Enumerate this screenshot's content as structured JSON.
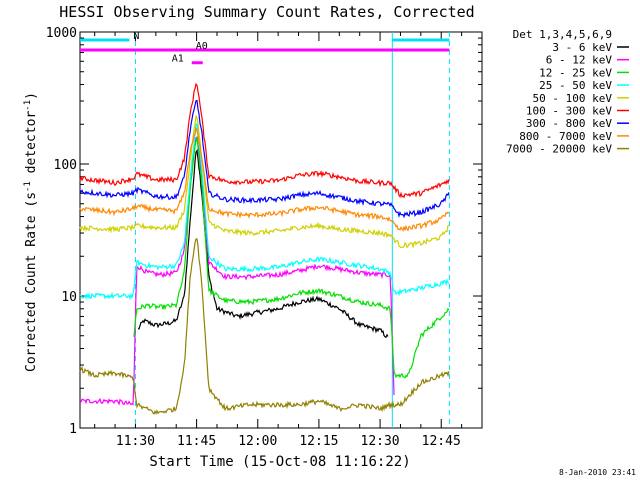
{
  "chart_data": {
    "type": "line",
    "title": "HESSI Observing Summary Count Rates, Corrected",
    "xlabel": "Start Time (15-Oct-08 11:16:22)",
    "ylabel_main": "Corrected Count Rate (s",
    "ylabel_sup1": "-1",
    "ylabel_mid": " detector",
    "ylabel_sup2": "-1",
    "ylabel_end": ")",
    "yscale": "log",
    "ylim": [
      1,
      1000
    ],
    "xlim_minutes": [
      676.4,
      775.0
    ],
    "x_ticks": [
      {
        "label": "11:30",
        "minute": 690
      },
      {
        "label": "11:45",
        "minute": 705
      },
      {
        "label": "12:00",
        "minute": 720
      },
      {
        "label": "12:15",
        "minute": 735
      },
      {
        "label": "12:30",
        "minute": 750
      },
      {
        "label": "12:45",
        "minute": 765
      }
    ],
    "y_ticks": [
      {
        "label": "1",
        "value": 1
      },
      {
        "label": "10",
        "value": 10
      },
      {
        "label": "100",
        "value": 100
      },
      {
        "label": "1000",
        "value": 1000
      }
    ],
    "legend_title": "Det 1,3,4,5,6,9",
    "series": [
      {
        "name": "3 - 6 keV",
        "color": "#000000",
        "points": [
          [
            690.5,
            5.5
          ],
          [
            692,
            6.5
          ],
          [
            695,
            6
          ],
          [
            698,
            6.2
          ],
          [
            700,
            6.5
          ],
          [
            702,
            10
          ],
          [
            703.5,
            40
          ],
          [
            705,
            140
          ],
          [
            706.3,
            60
          ],
          [
            708,
            14
          ],
          [
            710,
            8
          ],
          [
            715,
            7
          ],
          [
            720,
            7.5
          ],
          [
            725,
            8
          ],
          [
            730,
            9
          ],
          [
            735,
            9.5
          ],
          [
            740,
            8
          ],
          [
            745,
            6
          ],
          [
            750,
            5.5
          ],
          [
            752,
            4.8
          ]
        ]
      },
      {
        "name": "6 - 12 keV",
        "color": "#ff00ff",
        "points": [
          [
            676.4,
            1.6
          ],
          [
            685,
            1.6
          ],
          [
            689.5,
            1.5
          ],
          [
            690.3,
            17
          ],
          [
            693,
            15
          ],
          [
            696,
            14.5
          ],
          [
            700,
            15
          ],
          [
            702,
            22
          ],
          [
            703.5,
            80
          ],
          [
            705,
            175
          ],
          [
            706.3,
            80
          ],
          [
            708,
            18
          ],
          [
            712,
            14
          ],
          [
            718,
            14
          ],
          [
            725,
            14.5
          ],
          [
            730,
            15.5
          ],
          [
            735,
            17
          ],
          [
            740,
            16
          ],
          [
            745,
            15
          ],
          [
            750,
            14.5
          ],
          [
            752.5,
            14.5
          ],
          [
            753.5,
            1.5
          ]
        ]
      },
      {
        "name": "12 - 25 keV",
        "color": "#00e000",
        "points": [
          [
            689.5,
            4.5
          ],
          [
            690.3,
            8
          ],
          [
            693,
            8.5
          ],
          [
            696,
            8.2
          ],
          [
            700,
            8.5
          ],
          [
            702,
            15
          ],
          [
            703.5,
            70
          ],
          [
            705,
            165
          ],
          [
            706.3,
            70
          ],
          [
            708,
            11
          ],
          [
            712,
            9.2
          ],
          [
            718,
            9
          ],
          [
            725,
            9.5
          ],
          [
            730,
            10.5
          ],
          [
            735,
            11
          ],
          [
            740,
            10
          ],
          [
            745,
            9
          ],
          [
            750,
            8.5
          ],
          [
            752.5,
            8
          ],
          [
            753.5,
            2.5
          ],
          [
            757,
            2.5
          ],
          [
            760,
            5
          ],
          [
            765,
            7
          ],
          [
            767,
            8
          ]
        ]
      },
      {
        "name": "25 - 50 keV",
        "color": "#00ffff",
        "points": [
          [
            676.4,
            10
          ],
          [
            685,
            10
          ],
          [
            689.5,
            10
          ],
          [
            690.3,
            18
          ],
          [
            693,
            17
          ],
          [
            696,
            16.5
          ],
          [
            700,
            17
          ],
          [
            702,
            25
          ],
          [
            703.5,
            80
          ],
          [
            705,
            220
          ],
          [
            706.3,
            90
          ],
          [
            708,
            20
          ],
          [
            712,
            16
          ],
          [
            718,
            16
          ],
          [
            725,
            16.5
          ],
          [
            730,
            18
          ],
          [
            735,
            19
          ],
          [
            740,
            18
          ],
          [
            745,
            17
          ],
          [
            750,
            16
          ],
          [
            752.5,
            15
          ],
          [
            753.5,
            10.5
          ],
          [
            757,
            11
          ],
          [
            760,
            11.5
          ],
          [
            765,
            12.5
          ],
          [
            767,
            13
          ]
        ]
      },
      {
        "name": "50 - 100 keV",
        "color": "#d0d000",
        "points": [
          [
            676.4,
            33
          ],
          [
            685,
            32
          ],
          [
            689.5,
            33
          ],
          [
            690.3,
            34
          ],
          [
            695,
            33
          ],
          [
            700,
            33
          ],
          [
            702,
            45
          ],
          [
            703.5,
            110
          ],
          [
            705,
            250
          ],
          [
            706.3,
            110
          ],
          [
            708,
            36
          ],
          [
            712,
            31
          ],
          [
            718,
            30
          ],
          [
            725,
            31
          ],
          [
            730,
            33
          ],
          [
            735,
            34
          ],
          [
            740,
            32
          ],
          [
            745,
            31
          ],
          [
            750,
            30
          ],
          [
            752.5,
            29
          ],
          [
            755,
            24
          ],
          [
            760,
            25
          ],
          [
            765,
            28
          ],
          [
            767,
            34
          ]
        ]
      },
      {
        "name": "100 - 300 keV",
        "color": "#ff0000",
        "points": [
          [
            676.4,
            78
          ],
          [
            685,
            72
          ],
          [
            689.5,
            78
          ],
          [
            690.3,
            84
          ],
          [
            695,
            76
          ],
          [
            700,
            76
          ],
          [
            702,
            110
          ],
          [
            703.5,
            250
          ],
          [
            705,
            430
          ],
          [
            706.3,
            220
          ],
          [
            708,
            82
          ],
          [
            712,
            74
          ],
          [
            718,
            73
          ],
          [
            725,
            75
          ],
          [
            730,
            82
          ],
          [
            735,
            85
          ],
          [
            740,
            80
          ],
          [
            745,
            74
          ],
          [
            750,
            72
          ],
          [
            752.5,
            72
          ],
          [
            755,
            58
          ],
          [
            760,
            60
          ],
          [
            765,
            70
          ],
          [
            767,
            76
          ]
        ]
      },
      {
        "name": "300 - 800 keV",
        "color": "#0000ff",
        "points": [
          [
            676.4,
            62
          ],
          [
            685,
            58
          ],
          [
            689.5,
            60
          ],
          [
            690.3,
            64
          ],
          [
            695,
            57
          ],
          [
            700,
            56
          ],
          [
            702,
            80
          ],
          [
            703.5,
            190
          ],
          [
            705,
            310
          ],
          [
            706.3,
            170
          ],
          [
            708,
            60
          ],
          [
            712,
            54
          ],
          [
            718,
            53
          ],
          [
            725,
            54
          ],
          [
            730,
            58
          ],
          [
            735,
            60
          ],
          [
            740,
            56
          ],
          [
            745,
            52
          ],
          [
            750,
            50
          ],
          [
            752.5,
            49
          ],
          [
            755,
            41
          ],
          [
            760,
            43
          ],
          [
            765,
            50
          ],
          [
            767,
            60
          ]
        ]
      },
      {
        "name": "800 - 7000 keV",
        "color": "#ff8800",
        "points": [
          [
            676.4,
            46
          ],
          [
            685,
            43
          ],
          [
            689.5,
            46
          ],
          [
            690.3,
            48
          ],
          [
            695,
            45
          ],
          [
            700,
            44
          ],
          [
            702,
            60
          ],
          [
            703.5,
            130
          ],
          [
            705,
            190
          ],
          [
            706.3,
            110
          ],
          [
            708,
            46
          ],
          [
            712,
            42
          ],
          [
            718,
            41
          ],
          [
            725,
            42
          ],
          [
            730,
            45
          ],
          [
            735,
            47
          ],
          [
            740,
            44
          ],
          [
            745,
            41
          ],
          [
            750,
            40
          ],
          [
            752.5,
            38
          ],
          [
            755,
            32
          ],
          [
            760,
            34
          ],
          [
            765,
            38
          ],
          [
            767,
            44
          ]
        ]
      },
      {
        "name": "7000 - 20000 keV",
        "color": "#908000",
        "points": [
          [
            676.4,
            2.8
          ],
          [
            680,
            2.5
          ],
          [
            685,
            2.6
          ],
          [
            689.5,
            2.4
          ],
          [
            690.3,
            1.5
          ],
          [
            695,
            1.3
          ],
          [
            700,
            1.4
          ],
          [
            702,
            3
          ],
          [
            703.5,
            15
          ],
          [
            705,
            30
          ],
          [
            706.3,
            12
          ],
          [
            708,
            2
          ],
          [
            712,
            1.4
          ],
          [
            718,
            1.5
          ],
          [
            725,
            1.5
          ],
          [
            730,
            1.5
          ],
          [
            735,
            1.6
          ],
          [
            740,
            1.4
          ],
          [
            745,
            1.5
          ],
          [
            750,
            1.4
          ],
          [
            752.5,
            1.5
          ],
          [
            755,
            1.5
          ],
          [
            760,
            2.2
          ],
          [
            765,
            2.5
          ],
          [
            767,
            2.6
          ]
        ]
      }
    ],
    "flags": [
      {
        "label": "N",
        "color": "#00e0f0",
        "level": 870,
        "ranges": [
          [
            676.4,
            688.5
          ],
          [
            753.0,
            767.0
          ]
        ]
      },
      {
        "label": "A0",
        "color": "#ff00ff",
        "level": 730,
        "ranges": [
          [
            676.4,
            767.0
          ]
        ]
      },
      {
        "label": "A1",
        "color": "#ff00ff",
        "level": 585,
        "ranges": [
          [
            703.8,
            706.5
          ]
        ]
      }
    ],
    "vlines": [
      {
        "minute": 690.0,
        "style": "dashed"
      },
      {
        "minute": 753.0,
        "style": "solid"
      },
      {
        "minute": 767.0,
        "style": "dashed"
      }
    ],
    "vline_color": "#00e0f0",
    "legend_placement": "right"
  },
  "footer": {
    "date": "8-Jan-2010 23:41"
  }
}
